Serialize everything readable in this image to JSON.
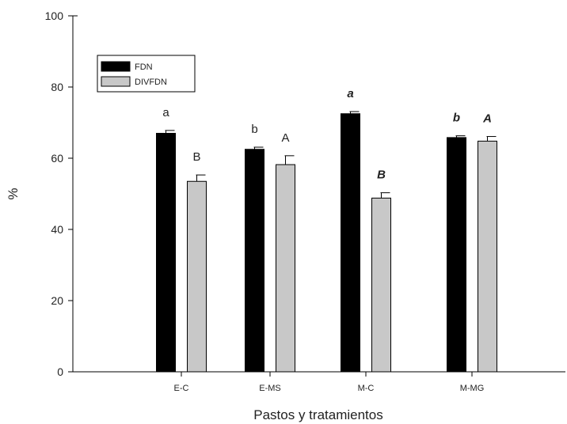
{
  "chart_data": {
    "type": "bar",
    "xlabel": "Pastos y tratamientos",
    "ylabel": "%",
    "ylim": [
      0,
      100
    ],
    "yticks": [
      0,
      20,
      40,
      60,
      80,
      100
    ],
    "categories": [
      "E-C",
      "E-MS",
      "M-C",
      "M-MG"
    ],
    "series": [
      {
        "name": "FDN",
        "color": "#000000",
        "values": [
          67,
          62.5,
          72.5,
          65.8
        ],
        "errors": [
          0.8,
          0.6,
          0.6,
          0.5
        ],
        "labels": [
          "a",
          "b",
          "a",
          "b"
        ],
        "label_italic": [
          false,
          false,
          true,
          true
        ]
      },
      {
        "name": "DIVFDN",
        "color": "#c8c8c8",
        "values": [
          53.5,
          58.2,
          48.8,
          64.8
        ],
        "errors": [
          1.8,
          2.5,
          1.5,
          1.3
        ],
        "labels": [
          "B",
          "A",
          "B",
          "A"
        ],
        "label_italic": [
          false,
          false,
          true,
          true
        ]
      }
    ],
    "legend": "top-left",
    "grid": false
  }
}
